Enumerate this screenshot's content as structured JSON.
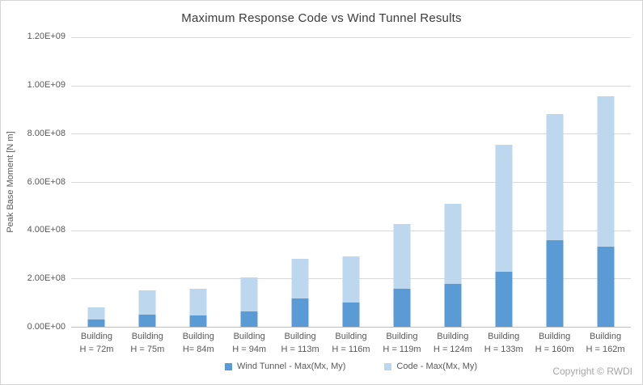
{
  "footer": {
    "copyright": "Copyright © RWDI"
  },
  "colors": {
    "wind_tunnel_bar": "#5B9BD5",
    "code_bar": "#BDD7EE",
    "gridline": "#D9D9D9",
    "axis_line": "#BFBFBF",
    "label_text": "#595959",
    "title_text": "#3B3B3B"
  },
  "chart_data": {
    "type": "bar",
    "title": "Maximum Response Code vs Wind Tunnel Results",
    "xlabel": "",
    "ylabel": "Peak Base Moment [N m]",
    "ylim": [
      0,
      1200000000
    ],
    "grid": true,
    "legend_position": "bottom",
    "bar_style": "overlapped - full-height light 'Code' bar behind, darker 'Wind Tunnel' bar in front of same width",
    "y_ticks": [
      {
        "label": "0.00E+00",
        "value": 0
      },
      {
        "label": "2.00E+08",
        "value": 200000000
      },
      {
        "label": "4.00E+08",
        "value": 400000000
      },
      {
        "label": "6.00E+08",
        "value": 600000000
      },
      {
        "label": "8.00E+08",
        "value": 800000000
      },
      {
        "label": "1.00E+09",
        "value": 1000000000
      },
      {
        "label": "1.20E+09",
        "value": 1200000000
      }
    ],
    "categories": [
      [
        "Building",
        "H = 72m"
      ],
      [
        "Building",
        "H = 75m"
      ],
      [
        "Building",
        "H= 84m"
      ],
      [
        "Building",
        "H = 94m"
      ],
      [
        "Building",
        "H = 113m"
      ],
      [
        "Building",
        "H = 116m"
      ],
      [
        "Building",
        "H = 119m"
      ],
      [
        "Building",
        "H = 124m"
      ],
      [
        "Building",
        "H = 133m"
      ],
      [
        "Building",
        "H = 160m"
      ],
      [
        "Building",
        "H = 162m"
      ]
    ],
    "series": [
      {
        "name": "Wind Tunnel - Max(Mx, My)",
        "color": "#5B9BD5",
        "values": [
          30000000,
          52000000,
          47000000,
          64000000,
          119000000,
          102000000,
          158000000,
          177000000,
          228000000,
          358000000,
          332000000
        ]
      },
      {
        "name": "Code - Max(Mx, My)",
        "color": "#BDD7EE",
        "values": [
          82000000,
          150000000,
          157000000,
          204000000,
          280000000,
          290000000,
          425000000,
          510000000,
          755000000,
          880000000,
          955000000
        ]
      }
    ]
  }
}
